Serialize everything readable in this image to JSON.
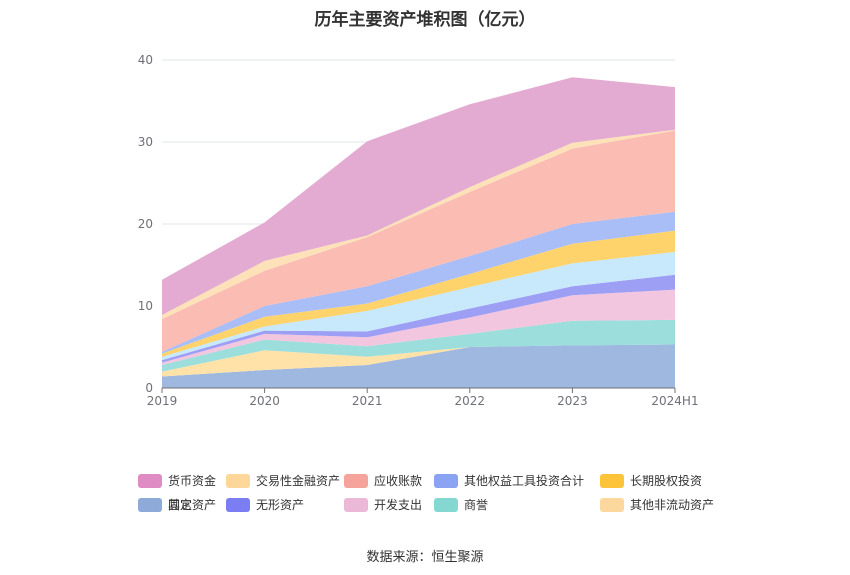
{
  "page": {
    "title": "历年主要资产堆积图（亿元）",
    "source": "数据来源：恒生聚源"
  },
  "chart_data": {
    "type": "area",
    "stacked": true,
    "title": "历年主要资产堆积图（亿元）",
    "xlabel": "",
    "ylabel": "",
    "categories": [
      "2019",
      "2020",
      "2021",
      "2022",
      "2023",
      "2024H1"
    ],
    "ylim": [
      0,
      40
    ],
    "yticks": [
      0,
      10,
      20,
      30,
      40
    ],
    "grid": true,
    "legend_position": "bottom",
    "series": [
      {
        "name": "其它",
        "color": "#9eb8e0",
        "values": [
          1.4,
          2.2,
          2.8,
          5.0,
          5.2,
          5.3
        ]
      },
      {
        "name": "其他非流动资产",
        "color": "#ffe2a8",
        "values": [
          0.6,
          2.4,
          1.0,
          0.0,
          0.0,
          0.0
        ]
      },
      {
        "name": "商誉",
        "color": "#9cdedc",
        "values": [
          0.8,
          1.3,
          1.3,
          1.6,
          3.0,
          3.0
        ]
      },
      {
        "name": "开发支出",
        "color": "#f2c6de",
        "values": [
          0.3,
          0.7,
          1.1,
          2.0,
          3.1,
          3.7
        ]
      },
      {
        "name": "无形资产",
        "color": "#9d9ff5",
        "values": [
          0.3,
          0.4,
          0.7,
          1.1,
          1.1,
          1.8
        ]
      },
      {
        "name": "固定资产",
        "color": "#c8e8fb",
        "values": [
          0.4,
          0.5,
          2.5,
          2.6,
          2.8,
          2.8
        ]
      },
      {
        "name": "长期股权投资",
        "color": "#ffd36b",
        "values": [
          0.4,
          1.2,
          0.9,
          1.6,
          2.4,
          2.6
        ]
      },
      {
        "name": "其他权益工具投资合计",
        "color": "#a9bdf7",
        "values": [
          0.2,
          1.3,
          2.1,
          2.2,
          2.4,
          2.3
        ]
      },
      {
        "name": "应收账款",
        "color": "#fbbcb3",
        "values": [
          4.0,
          4.3,
          6.0,
          7.8,
          9.2,
          9.9
        ]
      },
      {
        "name": "交易性金融资产",
        "color": "#fde1b8",
        "values": [
          0.5,
          1.2,
          0.2,
          0.6,
          0.7,
          0.1
        ]
      },
      {
        "name": "货币资金",
        "color": "#e4abd2",
        "values": [
          4.3,
          4.7,
          11.5,
          10.1,
          8.0,
          5.2
        ]
      }
    ]
  },
  "legend": {
    "items": [
      {
        "label": "货币资金",
        "color": "#df8cc4"
      },
      {
        "label": "交易性金融资产",
        "color": "#fdd79a"
      },
      {
        "label": "应收账款",
        "color": "#f6a49b"
      },
      {
        "label": "其他权益工具投资合计",
        "color": "#8aa4f3"
      },
      {
        "label": "长期股权投资",
        "color": "#fdc43a"
      },
      {
        "label": "固定资产",
        "color": "#aee0fb"
      },
      {
        "label": "无形资产",
        "color": "#7b7ef2"
      },
      {
        "label": "开发支出",
        "color": "#ebb9d7"
      },
      {
        "label": "商誉",
        "color": "#85d8d2"
      },
      {
        "label": "其他非流动资产",
        "color": "#fdd89e"
      },
      {
        "label": "其它",
        "color": "#8eaad8"
      }
    ]
  }
}
